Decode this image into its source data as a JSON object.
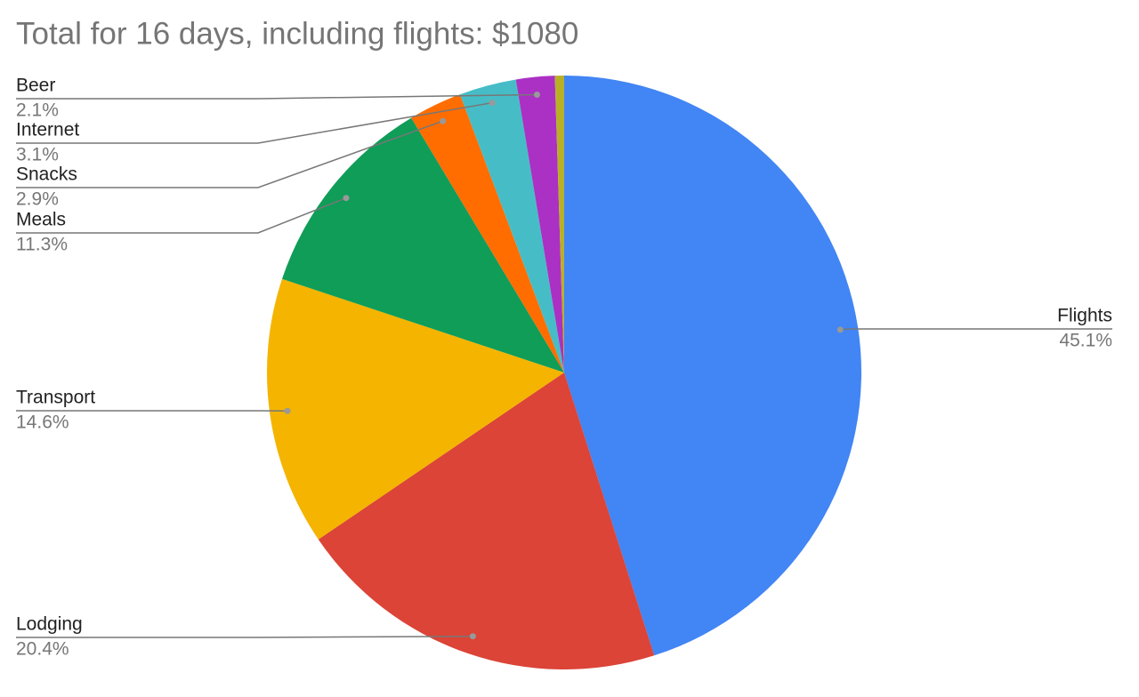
{
  "chart_data": {
    "type": "pie",
    "title": "Total for 16 days, including flights: $1080",
    "categories": [
      "Flights",
      "Lodging",
      "Transport",
      "Meals",
      "Snacks",
      "Internet",
      "Beer",
      null
    ],
    "values": [
      45.1,
      20.4,
      14.6,
      11.3,
      2.9,
      3.1,
      2.1,
      0.5
    ],
    "value_labels": [
      "45.1%",
      "20.4%",
      "14.6%",
      "11.3%",
      "2.9%",
      "3.1%",
      "2.1%",
      null
    ],
    "colors": [
      "#4285f4",
      "#db4437",
      "#f4b400",
      "#0f9d58",
      "#ff6d01",
      "#46bdc6",
      "#ab30c4",
      "#b8b128"
    ]
  }
}
